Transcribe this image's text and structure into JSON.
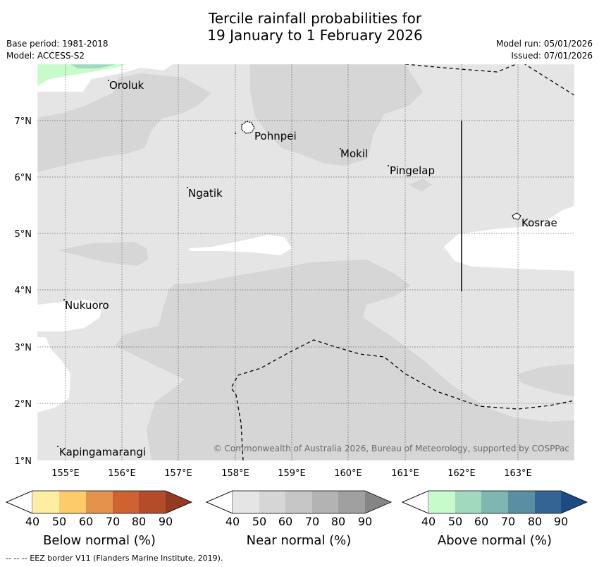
{
  "title": {
    "line1": "Tercile rainfall probabilities for",
    "line2": "19 January to 1 February 2026"
  },
  "meta": {
    "base_period": "Base period: 1981-2018",
    "model": "Model: ACCESS-S2",
    "model_run": "Model run: 05/01/2026",
    "issued": "Issued: 07/01/2026"
  },
  "map": {
    "lon_ticks": [
      "155°E",
      "156°E",
      "157°E",
      "158°E",
      "159°E",
      "160°E",
      "161°E",
      "162°E",
      "163°E"
    ],
    "lat_ticks": [
      "7°N",
      "6°N",
      "5°N",
      "4°N",
      "3°N",
      "2°N",
      "1°N"
    ],
    "places": {
      "oroluk": "Oroluk",
      "pohnpei": "Pohnpei",
      "mokil": "Mokil",
      "pingelap": "Pingelap",
      "ngatik": "Ngatik",
      "kosrae": "Kosrae",
      "nukuoro": "Nukuoro",
      "kapingamarangi": "Kapingamarangi"
    },
    "copyright": "© Commonwealth of Australia 2026, Bureau of Meteorology, supported by COSPPac"
  },
  "colorbars": {
    "ticks": [
      "40",
      "50",
      "60",
      "70",
      "80",
      "90"
    ],
    "below": {
      "title": "Below normal (%)",
      "colors": [
        "#ffeda0",
        "#fecb6a",
        "#e3934b",
        "#ce6233",
        "#b44c29",
        "#923a22"
      ]
    },
    "near": {
      "title": "Near normal (%)",
      "colors": [
        "#e5e5e5",
        "#d6d6d6",
        "#c6c6c6",
        "#b3b3b3",
        "#a0a0a0",
        "#858585"
      ]
    },
    "above": {
      "title": "Above normal (%)",
      "colors": [
        "#c8fbcb",
        "#a1d9bf",
        "#7fb6b1",
        "#5a8ea3",
        "#336495",
        "#1d4a80"
      ]
    }
  },
  "footer": "--  --  -- EEZ border V11 (Flanders Marine Institute, 2019)."
}
